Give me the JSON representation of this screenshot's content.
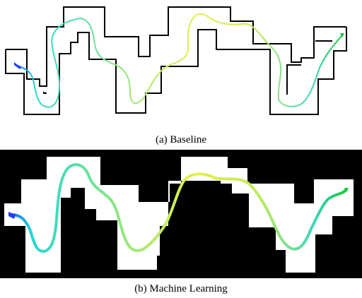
{
  "captions": {
    "a": "(a) Baseline",
    "b": "(b) Machine Learning"
  },
  "colors": {
    "wall": "#000000",
    "free_space": "#ffffff",
    "start_marker": "#1e3cff",
    "goal_marker": "#18c83c",
    "path_gradient": [
      "#1e5cff",
      "#23d7d2",
      "#6ce6a0",
      "#e6f046",
      "#3fd6c0"
    ]
  },
  "panels": [
    {
      "id": "baseline",
      "background": "white",
      "walls_drawn": "outline"
    },
    {
      "id": "machine-learning",
      "background": "black",
      "walls_drawn": "filled"
    }
  ]
}
